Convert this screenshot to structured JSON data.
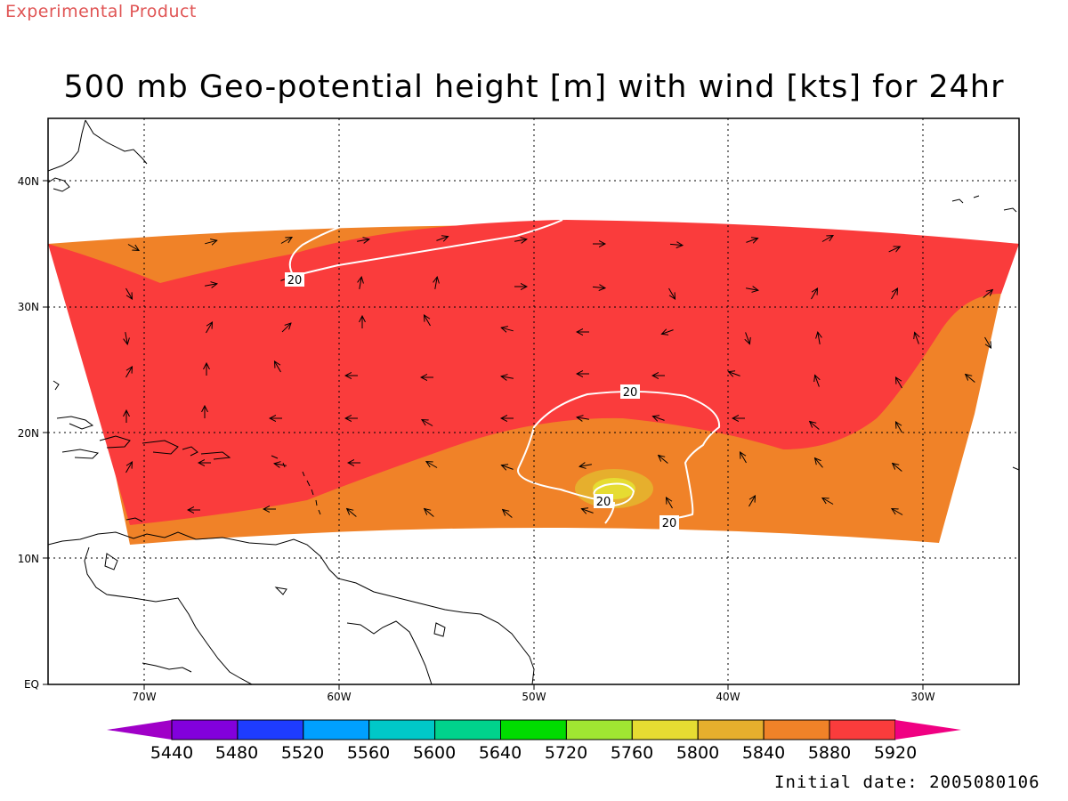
{
  "header": {
    "product_label": "Experimental Product",
    "title": "500 mb Geo-potential height [m] with wind [kts] for 24hr"
  },
  "footer": {
    "initial_date": "Initial date: 2005080106"
  },
  "axes": {
    "lon_labels": [
      "70W",
      "60W",
      "50W",
      "40W",
      "30W"
    ],
    "lat_labels": [
      "EQ",
      "10N",
      "20N",
      "30N",
      "40N"
    ]
  },
  "contour_labels": [
    "20",
    "20",
    "20",
    "20"
  ],
  "colorbar": {
    "levels": [
      "5440",
      "5480",
      "5520",
      "5560",
      "5600",
      "5640",
      "5720",
      "5760",
      "5800",
      "5840",
      "5880",
      "5920"
    ],
    "colors": [
      "#a000c8",
      "#8200dc",
      "#1e3cff",
      "#00a0ff",
      "#00c8c8",
      "#00d28c",
      "#00dc00",
      "#a0e632",
      "#e6dc32",
      "#e6af2d",
      "#f08228",
      "#fa3c3c",
      "#f00082"
    ]
  },
  "colors": {
    "band_5880": "#f08228",
    "band_5920": "#fa3c3c",
    "band_5840": "#e6af2d",
    "band_5800": "#e6dc32",
    "contour": "#ffffff",
    "coast": "#000000",
    "product_label": "#e05555"
  }
}
